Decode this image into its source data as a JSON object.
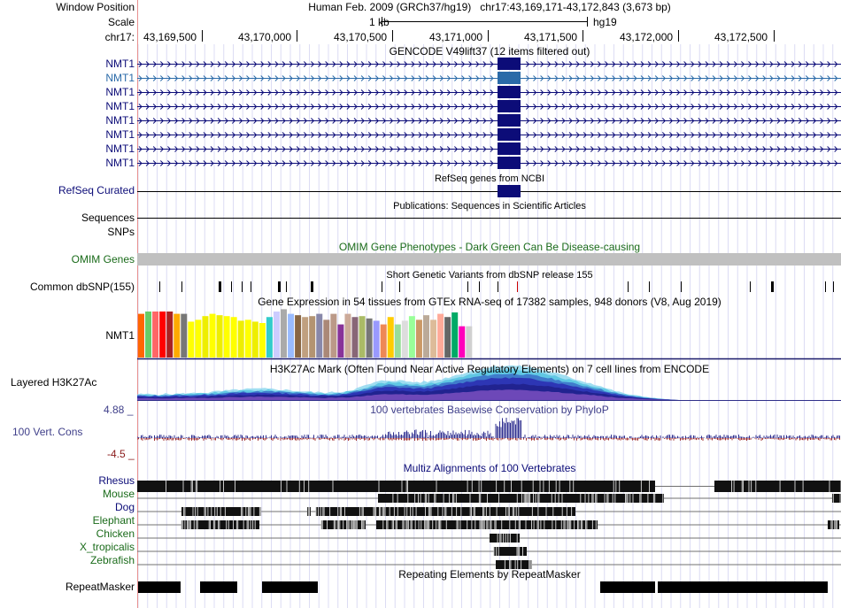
{
  "header": {
    "window_position_label": "Window Position",
    "position_text": "Human Feb. 2009 (GRCh37/hg19)   chr17:43,169,171-43,172,843 (3,673 bp)",
    "scale_label": "Scale",
    "scale_text": "1 kb",
    "assembly": "hg19",
    "chrom_label": "chr17:",
    "ruler_ticks": [
      "43,169,500",
      "43,170,000",
      "43,170,500",
      "43,171,000",
      "43,171,500",
      "43,172,000",
      "43,172,500"
    ]
  },
  "tracks": {
    "gencode": {
      "title": "GENCODE V49lift37 (12 items filtered out)",
      "items": [
        "NMT1",
        "NMT1",
        "NMT1",
        "NMT1",
        "NMT1",
        "NMT1",
        "NMT1",
        "NMT1"
      ],
      "color": "#0c0c78",
      "highlight_color": "#2a6aa8"
    },
    "refseq": {
      "label": "RefSeq Curated",
      "title": "RefSeq genes from NCBI"
    },
    "publications": {
      "title": "Publications: Sequences in Scientific Articles",
      "label_sequences": "Sequences",
      "label_snps": "SNPs"
    },
    "omim": {
      "title": "OMIM Gene Phenotypes - Dark Green Can Be Disease-causing",
      "label": "OMIM Genes"
    },
    "dbsnp": {
      "title": "Short Genetic Variants from dbSNP release 155",
      "label": "Common dbSNP(155)"
    },
    "gtex": {
      "title": "Gene Expression in 54 tissues from GTEx RNA-seq of 17382 samples, 948 donors (V8, Aug 2019)",
      "label": "NMT1",
      "bar_colors": [
        "#FF6600",
        "#66CC66",
        "#FF6666",
        "#FF0000",
        "#AA2222",
        "#FFAA00",
        "#777777",
        "#FFFF00",
        "#FFFF00",
        "#EEEE00",
        "#FFFF00",
        "#EEEE00",
        "#FFFF00",
        "#FFFF00",
        "#EEEE00",
        "#FFFF00",
        "#EEEE00",
        "#FFFF00",
        "#33CCCC",
        "#CCCCFF",
        "#AAAAAA",
        "#99BBFF",
        "#886644",
        "#C0A080",
        "#B39472",
        "#8888AA",
        "#AA8877",
        "#BB9988",
        "#883399",
        "#CCAA99",
        "#886677",
        "#AABB66",
        "#777777",
        "#9999FF",
        "#EE8855",
        "#FFCC00",
        "#99DD99",
        "#DDDDDD",
        "#99FF99",
        "#CC9966",
        "#BBAA99",
        "#DDBB99",
        "#FFAA99",
        "#666666",
        "#00AA66",
        "#FF00BB",
        "#D0D0D0"
      ],
      "bar_values": [
        0.95,
        1.0,
        1.0,
        1.0,
        1.0,
        0.95,
        0.95,
        0.78,
        0.82,
        0.9,
        0.95,
        0.92,
        0.9,
        0.88,
        0.8,
        0.82,
        0.78,
        0.75,
        0.88,
        1.0,
        1.05,
        0.95,
        0.92,
        0.88,
        0.9,
        0.95,
        0.82,
        0.95,
        0.72,
        0.95,
        0.88,
        0.9,
        0.85,
        0.8,
        0.72,
        0.88,
        0.72,
        0.8,
        0.9,
        0.82,
        0.92,
        0.82,
        0.95,
        0.88,
        0.98,
        0.68,
        0.68
      ]
    },
    "h3k27ac": {
      "title": "H3K27Ac Mark (Often Found Near Active Regulatory Elements) on 7 cell lines from ENCODE",
      "label": "Layered H3K27Ac"
    },
    "phylop": {
      "title": "100 vertebrates Basewise Conservation by PhyloP",
      "label": "100 Vert. Cons",
      "max_label": "4.88 _",
      "min_label": "-4.5 _"
    },
    "multiz": {
      "title": "Multiz Alignments of 100 Vertebrates",
      "species": [
        {
          "name": "Rhesus",
          "color": "#0c0c78"
        },
        {
          "name": "Mouse",
          "color": "#1a6b1a"
        },
        {
          "name": "Dog",
          "color": "#0c0c78"
        },
        {
          "name": "Elephant",
          "color": "#1a6b1a"
        },
        {
          "name": "Chicken",
          "color": "#1a6b1a"
        },
        {
          "name": "X_tropicalis",
          "color": "#1a6b1a"
        },
        {
          "name": "Zebrafish",
          "color": "#1a6b1a"
        }
      ]
    },
    "repeatmasker": {
      "title": "Repeating Elements by RepeatMasker",
      "label": "RepeatMasker"
    }
  }
}
